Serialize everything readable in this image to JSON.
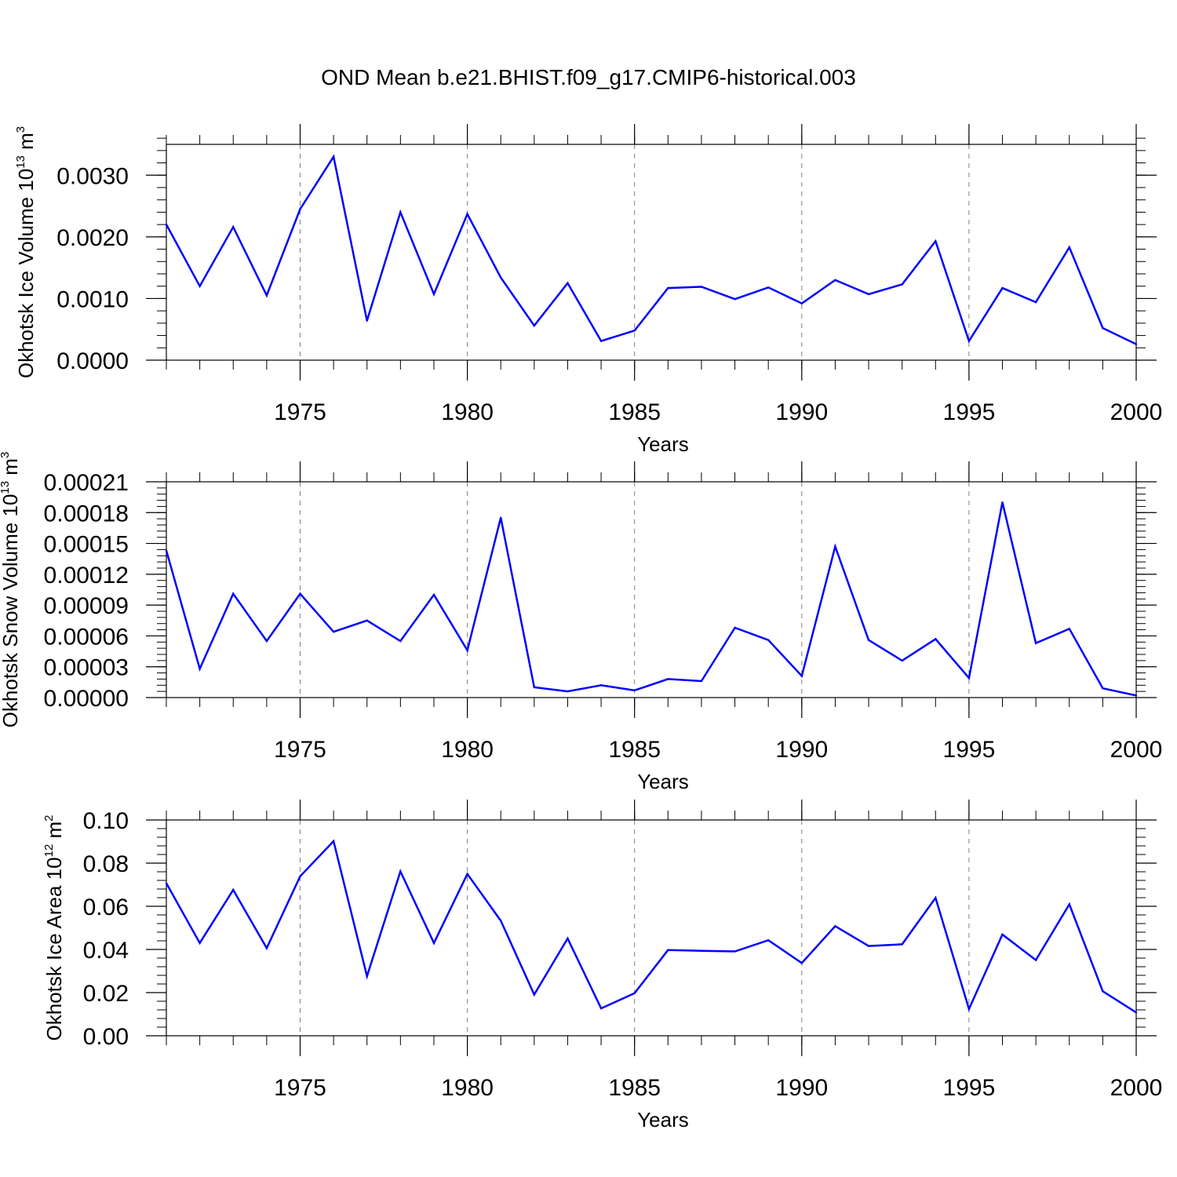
{
  "title": "OND Mean b.e21.BHIST.f09_g17.CMIP6-historical.003",
  "colors": {
    "series": "#0000ff",
    "axis": "#000000",
    "grid": "#7f7f7f"
  },
  "chart_data": [
    {
      "type": "line",
      "name": "ice-volume",
      "ylabel_main": "Okhotsk Ice Volume 10",
      "ylabel_exp": "13",
      "ylabel_unit": " m",
      "ylabel_unit_exp": "3",
      "xlabel": "Years",
      "xlim": [
        1971,
        2000
      ],
      "xticks": [
        1975,
        1980,
        1985,
        1990,
        1995,
        2000
      ],
      "xtick_labels": [
        "1975",
        "1980",
        "1985",
        "1990",
        "1995",
        "2000"
      ],
      "ylim": [
        0,
        0.0035
      ],
      "yticks": [
        0,
        0.001,
        0.002,
        0.003
      ],
      "ytick_labels": [
        "0.0000",
        "0.0010",
        "0.0020",
        "0.0030"
      ],
      "grid": "vertical dashed at major x ticks",
      "x": [
        1971,
        1972,
        1973,
        1974,
        1975,
        1976,
        1977,
        1978,
        1979,
        1980,
        1981,
        1982,
        1983,
        1984,
        1985,
        1986,
        1987,
        1988,
        1989,
        1990,
        1991,
        1992,
        1993,
        1994,
        1995,
        1996,
        1997,
        1998,
        1999,
        2000
      ],
      "series": [
        {
          "name": "Okhotsk Ice Volume",
          "values": [
            0.0022,
            0.0012,
            0.00216,
            0.00105,
            0.00245,
            0.0033,
            0.00064,
            0.0024,
            0.00107,
            0.00237,
            0.00134,
            0.00056,
            0.00125,
            0.00031,
            0.00048,
            0.00117,
            0.00119,
            0.00099,
            0.00118,
            0.00092,
            0.0013,
            0.00107,
            0.00123,
            0.00193,
            0.00031,
            0.00117,
            0.00094,
            0.00183,
            0.00052,
            0.00026
          ]
        }
      ]
    },
    {
      "type": "line",
      "name": "snow-volume",
      "ylabel_main": "Okhotsk Snow Volume 10",
      "ylabel_exp": "13",
      "ylabel_unit": " m",
      "ylabel_unit_exp": "3",
      "xlabel": "Years",
      "xlim": [
        1971,
        2000
      ],
      "xticks": [
        1975,
        1980,
        1985,
        1990,
        1995,
        2000
      ],
      "xtick_labels": [
        "1975",
        "1980",
        "1985",
        "1990",
        "1995",
        "2000"
      ],
      "ylim": [
        0,
        0.00021
      ],
      "yticks": [
        0,
        3e-05,
        6e-05,
        9e-05,
        0.00012,
        0.00015,
        0.00018,
        0.00021
      ],
      "ytick_labels": [
        "0.00000",
        "0.00003",
        "0.00006",
        "0.00009",
        "0.00012",
        "0.00015",
        "0.00018",
        "0.00021"
      ],
      "grid": "vertical dashed at major x ticks",
      "x": [
        1971,
        1972,
        1973,
        1974,
        1975,
        1976,
        1977,
        1978,
        1979,
        1980,
        1981,
        1982,
        1983,
        1984,
        1985,
        1986,
        1987,
        1988,
        1989,
        1990,
        1991,
        1992,
        1993,
        1994,
        1995,
        1996,
        1997,
        1998,
        1999,
        2000
      ],
      "series": [
        {
          "name": "Okhotsk Snow Volume",
          "values": [
            0.000143,
            2.8e-05,
            0.000101,
            5.5e-05,
            0.000101,
            6.4e-05,
            7.5e-05,
            5.5e-05,
            0.0001,
            4.6e-05,
            0.000175,
            1e-05,
            6e-06,
            1.2e-05,
            7e-06,
            1.8e-05,
            1.6e-05,
            6.8e-05,
            5.6e-05,
            2.1e-05,
            0.000147,
            5.6e-05,
            3.6e-05,
            5.7e-05,
            1.9e-05,
            0.00019,
            5.3e-05,
            6.7e-05,
            9e-06,
            2e-06
          ]
        }
      ]
    },
    {
      "type": "line",
      "name": "ice-area",
      "ylabel_main": "Okhotsk Ice Area 10",
      "ylabel_exp": "12",
      "ylabel_unit": " m",
      "ylabel_unit_exp": "2",
      "xlabel": "Years",
      "xlim": [
        1971,
        2000
      ],
      "xticks": [
        1975,
        1980,
        1985,
        1990,
        1995,
        2000
      ],
      "xtick_labels": [
        "1975",
        "1980",
        "1985",
        "1990",
        "1995",
        "2000"
      ],
      "ylim": [
        0,
        0.1
      ],
      "yticks": [
        0,
        0.02,
        0.04,
        0.06,
        0.08,
        0.1
      ],
      "ytick_labels": [
        "0.00",
        "0.02",
        "0.04",
        "0.06",
        "0.08",
        "0.10"
      ],
      "grid": "vertical dashed at major x ticks",
      "x": [
        1971,
        1972,
        1973,
        1974,
        1975,
        1976,
        1977,
        1978,
        1979,
        1980,
        1981,
        1982,
        1983,
        1984,
        1985,
        1986,
        1987,
        1988,
        1989,
        1990,
        1991,
        1992,
        1993,
        1994,
        1995,
        1996,
        1997,
        1998,
        1999,
        2000
      ],
      "series": [
        {
          "name": "Okhotsk Ice Area",
          "values": [
            0.0707,
            0.043,
            0.0676,
            0.0406,
            0.0739,
            0.0902,
            0.0276,
            0.0762,
            0.043,
            0.075,
            0.0533,
            0.0191,
            0.0451,
            0.0127,
            0.0197,
            0.0397,
            0.0394,
            0.0391,
            0.0443,
            0.0337,
            0.0508,
            0.0416,
            0.0424,
            0.0639,
            0.0124,
            0.0469,
            0.0351,
            0.0609,
            0.0206,
            0.0108
          ]
        }
      ]
    }
  ]
}
